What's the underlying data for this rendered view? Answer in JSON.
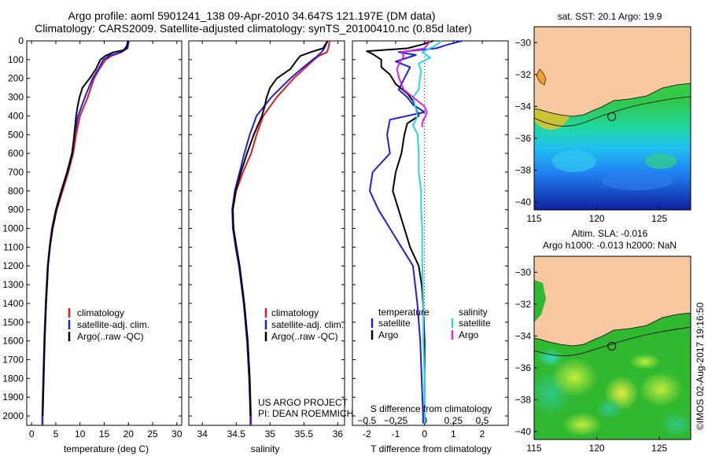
{
  "header": {
    "title_line1": "Argo profile: aoml 5901241_138 09-Apr-2010 34.647S 121.197E (DM data)",
    "title_line2": "Climatology: CARS2009. Satellite-adjusted climatology: synTS_20100410.nc (0.85d later)"
  },
  "footer": {
    "project_line1": "US ARGO PROJECT",
    "project_line2": "PI: DEAN ROEMMICH",
    "stamp": "©IMOS 02-Aug-2017 19:16:50"
  },
  "colors": {
    "climatology": "#e41a1c",
    "satellite": "#1f1fe0",
    "argo": "#000000",
    "sal_satellite": "#22d8e8",
    "sal_argo": "#e020e0",
    "land": "#f8c8a0"
  },
  "chart_data": [
    {
      "type": "line",
      "panel": "temperature",
      "xlabel": "temperature (deg C)",
      "ylabel": "",
      "xlim": [
        -1,
        31
      ],
      "ylim": [
        2050,
        0
      ],
      "x_ticks": [
        0,
        5,
        10,
        15,
        20,
        25,
        30
      ],
      "y_ticks": [
        0,
        100,
        200,
        300,
        400,
        500,
        600,
        700,
        800,
        900,
        1000,
        1100,
        1200,
        1300,
        1400,
        1500,
        1600,
        1700,
        1800,
        1900,
        2000
      ],
      "legend": [
        "climatology",
        "satellite-adj. clim.",
        "Argo(..raw -QC)"
      ],
      "series": [
        {
          "name": "climatology",
          "depth": [
            0,
            40,
            60,
            80,
            100,
            150,
            200,
            300,
            400,
            500,
            600,
            700,
            800,
            900,
            1000,
            1100,
            1200,
            1400,
            1600,
            1800,
            2000,
            2050
          ],
          "values": [
            20.0,
            19.6,
            18.6,
            16.5,
            15.3,
            14.0,
            12.9,
            11.6,
            10.0,
            9.2,
            8.6,
            7.6,
            6.4,
            5.2,
            4.4,
            3.8,
            3.4,
            3.0,
            2.7,
            2.5,
            2.3,
            2.3
          ]
        },
        {
          "name": "satellite-adj. clim.",
          "depth": [
            0,
            40,
            60,
            80,
            100,
            150,
            200,
            300,
            400,
            500,
            600,
            700,
            800,
            900,
            1000,
            1100,
            1200,
            1400,
            1600,
            1800,
            2000,
            2050
          ],
          "values": [
            20.1,
            19.8,
            18.5,
            16.0,
            14.8,
            13.8,
            12.6,
            11.0,
            9.6,
            8.9,
            8.3,
            7.3,
            6.1,
            5.0,
            4.2,
            3.7,
            3.3,
            2.9,
            2.6,
            2.4,
            2.2,
            2.2
          ]
        },
        {
          "name": "Argo(..raw -QC)",
          "depth": [
            0,
            30,
            50,
            60,
            80,
            100,
            150,
            200,
            250,
            300,
            350,
            400,
            450,
            500,
            600,
            700,
            800,
            900,
            1000,
            1100,
            1200,
            1400,
            1600,
            1800,
            2000
          ],
          "values": [
            19.9,
            19.6,
            19.0,
            17.0,
            15.2,
            14.2,
            13.3,
            12.0,
            10.5,
            9.9,
            9.5,
            9.2,
            9.0,
            8.8,
            8.4,
            7.4,
            6.2,
            5.1,
            4.3,
            3.8,
            3.4,
            3.0,
            2.7,
            2.5,
            2.3
          ]
        }
      ]
    },
    {
      "type": "line",
      "panel": "salinity",
      "xlabel": "salinity",
      "ylabel": "",
      "xlim": [
        33.8,
        36.1
      ],
      "ylim": [
        2050,
        0
      ],
      "x_ticks": [
        34,
        34.5,
        35,
        35.5,
        36
      ],
      "x_tick_labels": [
        "34",
        "34.5",
        "35",
        "35.5",
        "36"
      ],
      "legend": [
        "climatology",
        "satellite-adj. clim.",
        "Argo(..raw -QC)"
      ],
      "series": [
        {
          "name": "climatology",
          "depth": [
            0,
            40,
            60,
            80,
            100,
            150,
            200,
            300,
            400,
            500,
            600,
            700,
            800,
            900,
            1000,
            1100,
            1200,
            1400,
            1600,
            1800,
            2000,
            2050
          ],
          "values": [
            35.88,
            35.86,
            35.84,
            35.72,
            35.65,
            35.5,
            35.35,
            35.1,
            34.9,
            34.8,
            34.72,
            34.6,
            34.5,
            34.45,
            34.46,
            34.5,
            34.55,
            34.62,
            34.67,
            34.7,
            34.72,
            34.72
          ]
        },
        {
          "name": "satellite-adj. clim.",
          "depth": [
            0,
            40,
            60,
            80,
            100,
            150,
            200,
            300,
            400,
            500,
            600,
            700,
            800,
            900,
            1000,
            1100,
            1200,
            1400,
            1600,
            1800,
            2000,
            2050
          ],
          "values": [
            35.85,
            35.8,
            35.76,
            35.7,
            35.63,
            35.46,
            35.3,
            35.02,
            34.8,
            34.7,
            34.62,
            34.55,
            34.48,
            34.44,
            34.45,
            34.49,
            34.54,
            34.61,
            34.66,
            34.69,
            34.71,
            34.71
          ]
        },
        {
          "name": "Argo(..raw -QC)",
          "depth": [
            0,
            40,
            60,
            80,
            100,
            150,
            200,
            250,
            300,
            350,
            400,
            450,
            500,
            600,
            700,
            800,
            900,
            1000,
            1200,
            1400,
            1600,
            1800,
            2000
          ],
          "values": [
            35.85,
            35.78,
            35.6,
            35.45,
            35.4,
            35.3,
            35.1,
            35.0,
            34.95,
            34.92,
            34.88,
            34.82,
            34.76,
            34.66,
            34.57,
            34.49,
            34.45,
            34.46,
            34.55,
            34.62,
            34.67,
            34.7,
            34.71
          ]
        }
      ]
    },
    {
      "type": "line",
      "panel": "difference",
      "xlabel": "T difference from climatology",
      "x2label": "S difference from climatology",
      "xlim": [
        -2.5,
        2.9
      ],
      "ylim": [
        2050,
        0
      ],
      "x_ticks": [
        -2,
        -1,
        0,
        1,
        2
      ],
      "x2_ticks": [
        -0.5,
        -0.25,
        0,
        0.25,
        0.5
      ],
      "x2_tick_labels": [
        "−0.5",
        "−0.25",
        "0",
        "0.25",
        "0.5"
      ],
      "legend_groups": [
        "temperature",
        "salinity"
      ],
      "legend": [
        "satellite",
        "Argo",
        "satellite",
        "Argo"
      ],
      "series": [
        {
          "name": "satellite",
          "group": "temperature",
          "depth": [
            0,
            20,
            40,
            60,
            75,
            90,
            110,
            140,
            200,
            260,
            300,
            340,
            380,
            420,
            500,
            600,
            700,
            800,
            900,
            1000,
            1100,
            1200,
            1400,
            1600,
            1800,
            2000,
            2040
          ],
          "values": [
            1.3,
            0.8,
            0.4,
            -0.9,
            -0.3,
            -0.6,
            -1.0,
            -0.5,
            -0.7,
            -0.9,
            -0.6,
            -0.4,
            0.0,
            -1.2,
            -1.3,
            -1.2,
            -1.8,
            -1.9,
            -1.6,
            -1.2,
            -0.8,
            -0.4,
            -0.25,
            -0.15,
            -0.1,
            -0.05,
            -0.05
          ]
        },
        {
          "name": "Argo",
          "group": "temperature",
          "depth": [
            0,
            20,
            40,
            55,
            70,
            100,
            140,
            180,
            230,
            280,
            320,
            360,
            400,
            440,
            500,
            600,
            700,
            800,
            900,
            1000,
            1100,
            1200,
            1300,
            1400,
            1600,
            1800,
            2000,
            2040
          ],
          "values": [
            0.3,
            -0.1,
            -0.6,
            -2.0,
            -1.8,
            -1.5,
            -1.5,
            -1.2,
            -1.0,
            -0.6,
            -0.4,
            -0.3,
            -0.2,
            -0.6,
            -0.7,
            -0.8,
            -1.0,
            -1.1,
            -0.9,
            -0.7,
            -0.5,
            -0.2,
            -0.1,
            -0.05,
            0.0,
            0.0,
            0.0,
            0.0
          ]
        },
        {
          "name": "satellite",
          "group": "salinity",
          "depth": [
            0,
            30,
            60,
            90,
            120,
            160,
            200,
            260,
            300,
            350,
            400,
            450,
            500,
            600,
            700,
            800,
            900,
            1000,
            1200,
            1400,
            1600,
            1800,
            2000,
            2040
          ],
          "values": [
            0.15,
            0.08,
            -0.02,
            0.05,
            -0.05,
            -0.03,
            -0.04,
            -0.05,
            -0.1,
            -0.08,
            -0.06,
            -0.1,
            -0.06,
            -0.05,
            -0.05,
            -0.03,
            -0.03,
            -0.02,
            -0.02,
            -0.01,
            -0.01,
            0.0,
            0.0,
            0.0
          ]
        },
        {
          "name": "Argo",
          "group": "salinity",
          "depth": [
            0,
            40,
            60,
            80,
            100,
            120,
            150,
            200,
            260,
            300,
            350,
            380,
            400,
            420,
            440,
            460
          ],
          "values": [
            0.05,
            0.0,
            -0.2,
            -0.18,
            -0.2,
            -0.22,
            -0.24,
            -0.22,
            -0.18,
            -0.1,
            0.0,
            0.02,
            0.01,
            -0.01,
            -0.02,
            -0.02
          ]
        }
      ]
    },
    {
      "type": "heatmap",
      "panel": "sst_map",
      "title": "sat. SST: 20.1 Argo: 19.9",
      "xlim": [
        115,
        127.5
      ],
      "ylim": [
        -40.5,
        -29
      ],
      "x_ticks": [
        115,
        120,
        125
      ],
      "y_ticks": [
        -30,
        -32,
        -34,
        -36,
        -38,
        -40
      ],
      "y_tick_labels": [
        "−30",
        "−32",
        "−34",
        "−36",
        "−38",
        "−40"
      ],
      "argo_position": {
        "lon": 121.197,
        "lat": -34.647
      }
    },
    {
      "type": "heatmap",
      "panel": "sla_map",
      "title": "Altim. SLA: -0.016",
      "subtitle": "Argo h1000: -0.013 h2000: NaN",
      "xlim": [
        115,
        127.5
      ],
      "ylim": [
        -40.5,
        -29
      ],
      "x_ticks": [
        115,
        120,
        125
      ],
      "y_ticks": [
        -30,
        -32,
        -34,
        -36,
        -38,
        -40
      ],
      "y_tick_labels": [
        "−30",
        "−32",
        "−34",
        "−36",
        "−38",
        "−40"
      ],
      "argo_position": {
        "lon": 121.197,
        "lat": -34.647
      }
    }
  ]
}
